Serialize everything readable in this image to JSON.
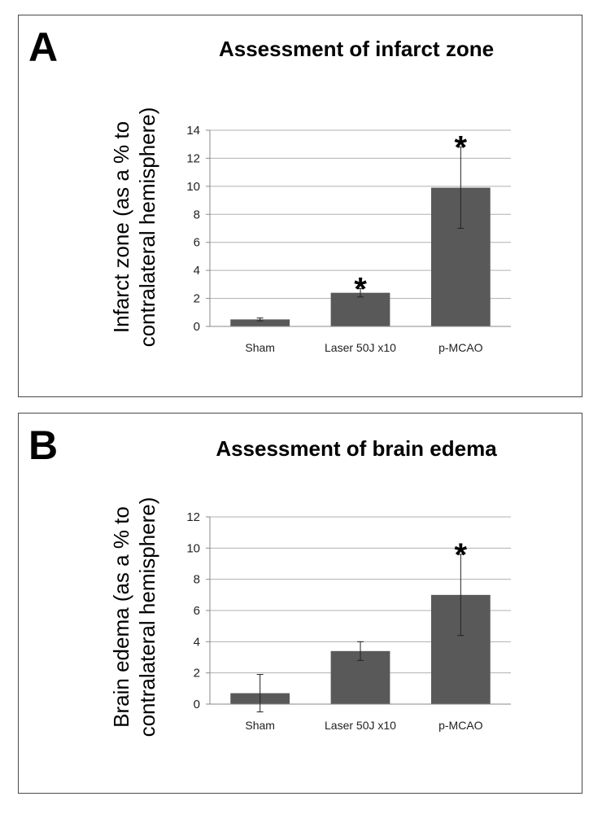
{
  "chart_data": [
    {
      "type": "bar",
      "panel_letter": "A",
      "title": "Assessment of infarct zone",
      "ylabel_lines": [
        "Infarct zone (as a % to",
        "contralateral hemisphere)"
      ],
      "categories": [
        "Sham",
        "Laser 50J x10",
        "p-MCAO"
      ],
      "values": [
        0.5,
        2.4,
        9.9
      ],
      "errors": [
        0.1,
        0.3,
        2.9
      ],
      "significance": [
        "",
        "*",
        "*"
      ],
      "ylim": [
        0,
        14
      ],
      "yticks": [
        0,
        2,
        4,
        6,
        8,
        10,
        12,
        14
      ],
      "grid": true,
      "bar_color": "#595959"
    },
    {
      "type": "bar",
      "panel_letter": "B",
      "title": "Assessment of brain edema",
      "ylabel_lines": [
        "Brain edema (as a % to",
        "contralateral hemisphere)"
      ],
      "categories": [
        "Sham",
        "Laser 50J x10",
        "p-MCAO"
      ],
      "values": [
        0.7,
        3.4,
        7.0
      ],
      "errors": [
        1.2,
        0.6,
        2.6
      ],
      "significance": [
        "",
        "",
        "*"
      ],
      "ylim": [
        0,
        12
      ],
      "yticks": [
        0,
        2,
        4,
        6,
        8,
        10,
        12
      ],
      "grid": true,
      "bar_color": "#595959"
    }
  ]
}
